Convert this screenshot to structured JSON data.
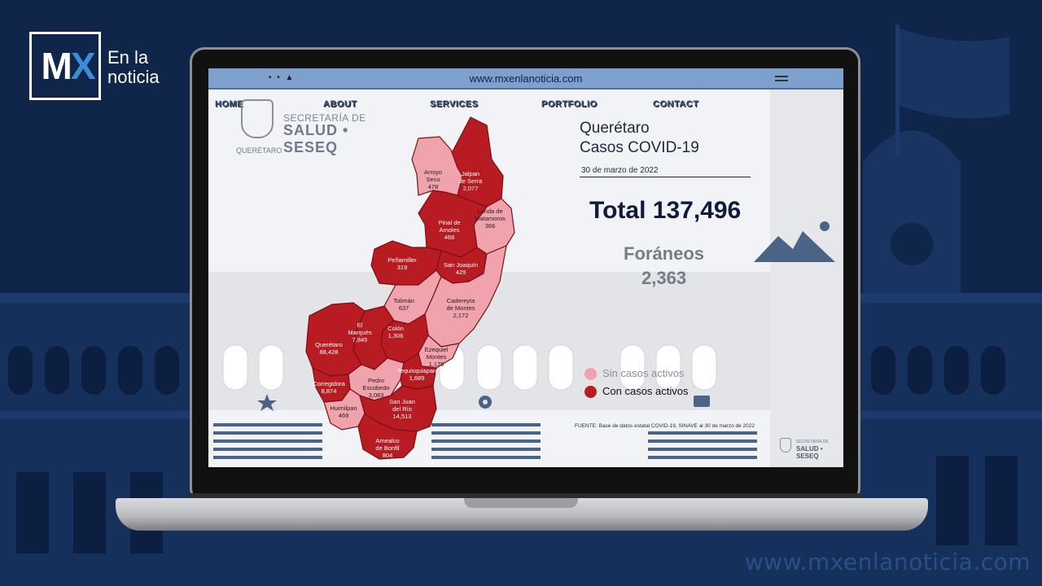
{
  "brand": {
    "logo_letters": "MX",
    "logo_text": "En la noticia",
    "footer_url": "www.mxenlanoticia.com"
  },
  "browser": {
    "url": "www.mxenlanoticia.com",
    "dots": "• • ▲"
  },
  "nav": {
    "home": "HOME",
    "about": "ABOUT",
    "services": "SERVICES",
    "portfolio": "PORTFOLIO",
    "contact": "CONTACT"
  },
  "agency": {
    "line1": "SECRETARÍA DE",
    "line2": "SALUD • SESEQ",
    "line3": "QUERÉTARO"
  },
  "report": {
    "title_line1": "Querétaro",
    "title_line2": "Casos COVID-19",
    "date": "30 de marzo de 2022",
    "total": "Total 137,496",
    "foraneos_label": "Foráneos",
    "foraneos_value": "2,363"
  },
  "legend": {
    "inactive": {
      "label": "Sin casos activos",
      "color": "#f1a3ad"
    },
    "active": {
      "label": "Con casos activos",
      "color": "#b81c22"
    }
  },
  "source": "FUENTE: Base de datos estatal  COVID-19,  SINAVE  al 30 de marzo de 2022",
  "colors": {
    "active": "#b81c22",
    "inactive": "#f1a3ad",
    "page_bg": "#10254a"
  },
  "municipalities": [
    {
      "name": "Arroyo\nSeco",
      "cases": "478",
      "status": "inactive"
    },
    {
      "name": "Jalpan\nde Serra",
      "cases": "2,077",
      "status": "active"
    },
    {
      "name": "Landa de\nMatamoros",
      "cases": "366",
      "status": "inactive"
    },
    {
      "name": "Pinal de\nAmoles",
      "cases": "468",
      "status": "active"
    },
    {
      "name": "Peñamiller",
      "cases": "319",
      "status": "active"
    },
    {
      "name": "San Joaquín",
      "cases": "429",
      "status": "active"
    },
    {
      "name": "Tolimán",
      "cases": "637",
      "status": "inactive"
    },
    {
      "name": "Cadereyta\nde Montes",
      "cases": "2,172",
      "status": "inactive"
    },
    {
      "name": "El\nMarqués",
      "cases": "7,845",
      "status": "active"
    },
    {
      "name": "Colón",
      "cases": "1,306",
      "status": "active"
    },
    {
      "name": "Querétaro",
      "cases": "88,428",
      "status": "active"
    },
    {
      "name": "Ezequiel\nMontes",
      "cases": "1,176",
      "status": "inactive"
    },
    {
      "name": "Corregidora",
      "cases": "8,874",
      "status": "active"
    },
    {
      "name": "Pedro\nEscobedo",
      "cases": "3,083",
      "status": "inactive"
    },
    {
      "name": "Tequisquiapan",
      "cases": "1,689",
      "status": "active"
    },
    {
      "name": "Huimilpan",
      "cases": "469",
      "status": "inactive"
    },
    {
      "name": "San Juan\ndel Río",
      "cases": "14,513",
      "status": "active"
    },
    {
      "name": "Amealco\nde Bonfil",
      "cases": "804",
      "status": "active"
    }
  ]
}
